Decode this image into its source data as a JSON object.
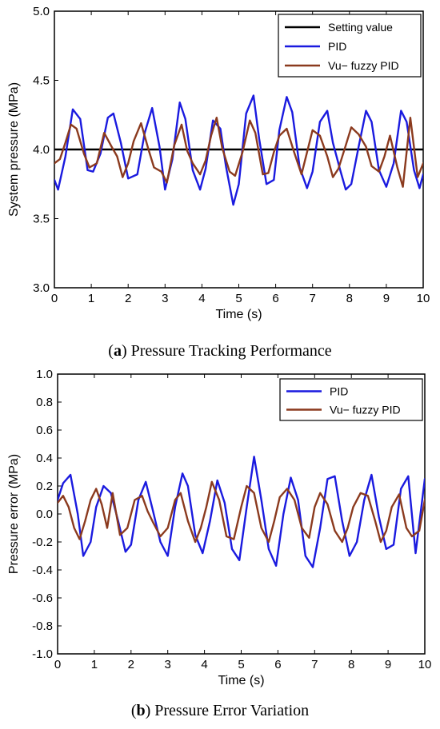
{
  "chart_data": [
    {
      "type": "line",
      "caption": {
        "prefix": "(",
        "letter": "a",
        "suffix": ") Pressure Tracking Performance"
      },
      "xlabel": "Time (s)",
      "ylabel": "System pressure (MPa)",
      "xlim": [
        0,
        10
      ],
      "ylim": [
        3.0,
        5.0
      ],
      "xticks": [
        "0",
        "1",
        "2",
        "3",
        "4",
        "5",
        "6",
        "7",
        "8",
        "9",
        "10"
      ],
      "yticks": [
        "3.0",
        "3.5",
        "4.0",
        "4.5",
        "5.0"
      ],
      "grid": false,
      "legend_position": "top-right",
      "series": [
        {
          "name": "Setting value",
          "color": "#000000",
          "x": [
            0,
            10
          ],
          "y": [
            4.0,
            4.0
          ]
        },
        {
          "name": "PID",
          "color": "#1a1adf",
          "x": [
            0,
            0.1,
            0.3,
            0.5,
            0.7,
            0.9,
            1.05,
            1.25,
            1.45,
            1.6,
            1.8,
            2.0,
            2.25,
            2.45,
            2.65,
            2.85,
            3.0,
            3.2,
            3.4,
            3.55,
            3.75,
            3.95,
            4.1,
            4.3,
            4.5,
            4.65,
            4.85,
            5.0,
            5.2,
            5.4,
            5.55,
            5.75,
            5.95,
            6.1,
            6.3,
            6.45,
            6.65,
            6.85,
            7.0,
            7.2,
            7.4,
            7.55,
            7.75,
            7.9,
            8.05,
            8.25,
            8.45,
            8.6,
            8.8,
            9.0,
            9.2,
            9.4,
            9.55,
            9.75,
            9.9,
            10.0
          ],
          "y": [
            3.78,
            3.71,
            3.95,
            4.29,
            4.22,
            3.85,
            3.84,
            3.97,
            4.23,
            4.26,
            4.05,
            3.79,
            3.82,
            4.12,
            4.3,
            4.02,
            3.71,
            3.93,
            4.34,
            4.22,
            3.85,
            3.71,
            3.86,
            4.21,
            4.15,
            3.88,
            3.6,
            3.75,
            4.26,
            4.39,
            4.08,
            3.75,
            3.78,
            4.14,
            4.38,
            4.27,
            3.87,
            3.72,
            3.84,
            4.2,
            4.28,
            4.05,
            3.85,
            3.71,
            3.75,
            4.02,
            4.28,
            4.2,
            3.85,
            3.73,
            3.9,
            4.28,
            4.2,
            3.85,
            3.72,
            3.82
          ]
        },
        {
          "name": "Vu− fuzzy PID",
          "color": "#8b3a1e",
          "x": [
            0,
            0.15,
            0.3,
            0.45,
            0.6,
            0.8,
            0.95,
            1.15,
            1.35,
            1.55,
            1.7,
            1.85,
            2.0,
            2.15,
            2.35,
            2.55,
            2.7,
            2.9,
            3.05,
            3.25,
            3.45,
            3.6,
            3.75,
            3.95,
            4.1,
            4.25,
            4.4,
            4.55,
            4.75,
            4.9,
            5.1,
            5.3,
            5.45,
            5.65,
            5.8,
            5.95,
            6.1,
            6.3,
            6.5,
            6.7,
            6.85,
            7.0,
            7.2,
            7.4,
            7.55,
            7.7,
            7.9,
            8.05,
            8.25,
            8.45,
            8.6,
            8.8,
            8.95,
            9.1,
            9.3,
            9.45,
            9.65,
            9.85,
            10.0
          ],
          "y": [
            3.9,
            3.93,
            4.05,
            4.18,
            4.15,
            3.97,
            3.87,
            3.9,
            4.12,
            4.02,
            3.95,
            3.8,
            3.9,
            4.06,
            4.19,
            4.0,
            3.87,
            3.84,
            3.76,
            4.03,
            4.18,
            3.99,
            3.9,
            3.82,
            3.92,
            4.1,
            4.23,
            4.01,
            3.84,
            3.81,
            3.98,
            4.21,
            4.12,
            3.82,
            3.83,
            3.98,
            4.1,
            4.15,
            3.98,
            3.82,
            3.98,
            4.14,
            4.1,
            3.95,
            3.8,
            3.86,
            4.03,
            4.16,
            4.11,
            4.02,
            3.88,
            3.84,
            3.95,
            4.1,
            3.87,
            3.73,
            4.23,
            3.8,
            3.9
          ]
        }
      ]
    },
    {
      "type": "line",
      "caption": {
        "prefix": "(",
        "letter": "b",
        "suffix": ") Pressure Error Variation"
      },
      "xlabel": "Time (s)",
      "ylabel": "Pressure error (MPa)",
      "xlim": [
        0,
        10
      ],
      "ylim": [
        -1.0,
        1.0
      ],
      "xticks": [
        "0",
        "1",
        "2",
        "3",
        "4",
        "5",
        "6",
        "7",
        "8",
        "9",
        "10"
      ],
      "yticks": [
        "-1.0",
        "-0.8",
        "-0.6",
        "-0.4",
        "-0.2",
        "0.0",
        "0.2",
        "0.4",
        "0.6",
        "0.8",
        "1.0"
      ],
      "grid": false,
      "legend_position": "top-right",
      "series": [
        {
          "name": "PID",
          "color": "#1a1adf",
          "x": [
            0,
            0.15,
            0.35,
            0.55,
            0.7,
            0.9,
            1.05,
            1.25,
            1.45,
            1.65,
            1.85,
            2.0,
            2.2,
            2.4,
            2.6,
            2.8,
            3.0,
            3.2,
            3.4,
            3.55,
            3.75,
            3.95,
            4.15,
            4.35,
            4.55,
            4.75,
            4.95,
            5.15,
            5.35,
            5.55,
            5.75,
            5.95,
            6.15,
            6.35,
            6.55,
            6.75,
            6.95,
            7.15,
            7.35,
            7.55,
            7.75,
            7.95,
            8.15,
            8.35,
            8.55,
            8.75,
            8.95,
            9.15,
            9.35,
            9.55,
            9.75,
            10.0
          ],
          "y": [
            0.1,
            0.22,
            0.28,
            0.0,
            -0.3,
            -0.2,
            0.05,
            0.2,
            0.15,
            -0.05,
            -0.27,
            -0.22,
            0.1,
            0.23,
            0.02,
            -0.2,
            -0.3,
            0.05,
            0.29,
            0.2,
            -0.15,
            -0.28,
            -0.05,
            0.24,
            0.08,
            -0.25,
            -0.33,
            0.05,
            0.41,
            0.1,
            -0.25,
            -0.37,
            0.0,
            0.26,
            0.1,
            -0.3,
            -0.38,
            -0.1,
            0.25,
            0.27,
            -0.05,
            -0.3,
            -0.2,
            0.1,
            0.28,
            -0.02,
            -0.25,
            -0.22,
            0.18,
            0.27,
            -0.28,
            0.25
          ]
        },
        {
          "name": "Vu− fuzzy PID",
          "color": "#8b3a1e",
          "x": [
            0,
            0.15,
            0.3,
            0.45,
            0.6,
            0.75,
            0.9,
            1.05,
            1.2,
            1.35,
            1.5,
            1.7,
            1.9,
            2.1,
            2.3,
            2.45,
            2.6,
            2.8,
            3.0,
            3.2,
            3.35,
            3.55,
            3.75,
            3.9,
            4.05,
            4.2,
            4.4,
            4.6,
            4.8,
            5.0,
            5.15,
            5.35,
            5.55,
            5.75,
            5.9,
            6.05,
            6.25,
            6.45,
            6.65,
            6.85,
            7.0,
            7.15,
            7.35,
            7.55,
            7.75,
            7.9,
            8.05,
            8.25,
            8.45,
            8.65,
            8.8,
            8.95,
            9.1,
            9.3,
            9.5,
            9.65,
            9.85,
            10.0
          ],
          "y": [
            0.08,
            0.13,
            0.05,
            -0.1,
            -0.18,
            -0.05,
            0.1,
            0.18,
            0.07,
            -0.1,
            0.15,
            -0.15,
            -0.1,
            0.1,
            0.13,
            0.02,
            -0.06,
            -0.16,
            -0.1,
            0.1,
            0.15,
            -0.05,
            -0.2,
            -0.1,
            0.05,
            0.23,
            0.1,
            -0.16,
            -0.18,
            0.05,
            0.2,
            0.15,
            -0.1,
            -0.2,
            -0.05,
            0.12,
            0.18,
            0.1,
            -0.1,
            -0.17,
            0.05,
            0.15,
            0.07,
            -0.12,
            -0.2,
            -0.1,
            0.05,
            0.15,
            0.13,
            -0.05,
            -0.2,
            -0.12,
            0.05,
            0.14,
            -0.1,
            -0.16,
            -0.12,
            0.1
          ]
        }
      ]
    }
  ]
}
